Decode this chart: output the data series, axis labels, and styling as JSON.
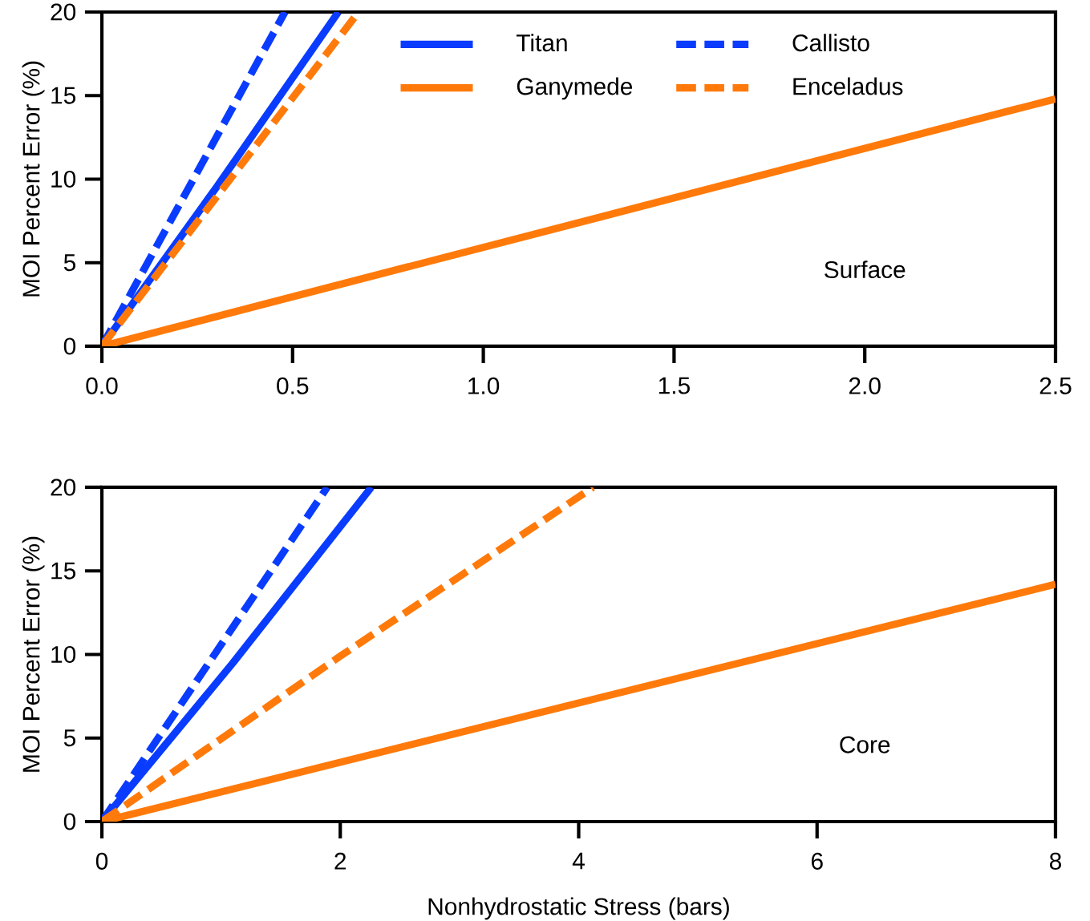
{
  "chart_data": [
    {
      "type": "line",
      "ylabel": "MOI Percent Error (%)",
      "xlim": [
        0,
        2.5
      ],
      "ylim": [
        0,
        20
      ],
      "xticks": [
        {
          "value": 0,
          "label": "0.0"
        },
        {
          "value": 0.5,
          "label": "0.5"
        },
        {
          "value": 1,
          "label": "1.0"
        },
        {
          "value": 1.5,
          "label": "1.5"
        },
        {
          "value": 2,
          "label": "2.0"
        },
        {
          "value": 2.5,
          "label": "2.5"
        }
      ],
      "yticks": [
        0,
        5,
        10,
        15,
        20
      ],
      "legend": "top",
      "annotations": [
        "Surface"
      ],
      "series": [
        {
          "name": "Titan",
          "color": "#0a3cff",
          "line_style": "solid",
          "x": [
            0,
            0.3,
            0.62
          ],
          "values": [
            0,
            9.5,
            20
          ]
        },
        {
          "name": "Ganymede",
          "color": "#ff7a0a",
          "line_style": "solid",
          "x": [
            0,
            2.5
          ],
          "values": [
            0,
            14.8
          ]
        },
        {
          "name": "Callisto",
          "color": "#0a3cff",
          "line_style": "dashed",
          "x": [
            0,
            0.48
          ],
          "values": [
            0,
            20
          ]
        },
        {
          "name": "Enceladus",
          "color": "#ff7a0a",
          "line_style": "dashed",
          "x": [
            0,
            0.673
          ],
          "values": [
            0,
            20
          ]
        }
      ]
    },
    {
      "type": "line",
      "xlabel": "Nonhydrostatic Stress (bars)",
      "ylabel": "MOI Percent Error (%)",
      "xlim": [
        0,
        8
      ],
      "ylim": [
        0,
        20
      ],
      "xticks": [
        0,
        2,
        4,
        6,
        8
      ],
      "yticks": [
        0,
        5,
        10,
        15,
        20
      ],
      "annotations": [
        "Core"
      ],
      "series": [
        {
          "color": "#0a3cff",
          "line_style": "solid",
          "x": [
            0,
            1.1,
            2.26
          ],
          "values": [
            0,
            9.5,
            20
          ]
        },
        {
          "color": "#ff7a0a",
          "line_style": "solid",
          "x": [
            0,
            8
          ],
          "values": [
            0,
            14.2
          ]
        },
        {
          "color": "#0a3cff",
          "line_style": "dashed",
          "x": [
            0,
            1.89
          ],
          "values": [
            0,
            20
          ]
        },
        {
          "color": "#ff7a0a",
          "line_style": "dashed",
          "x": [
            0,
            2,
            4.12
          ],
          "values": [
            0,
            9.9,
            20
          ]
        }
      ]
    }
  ]
}
